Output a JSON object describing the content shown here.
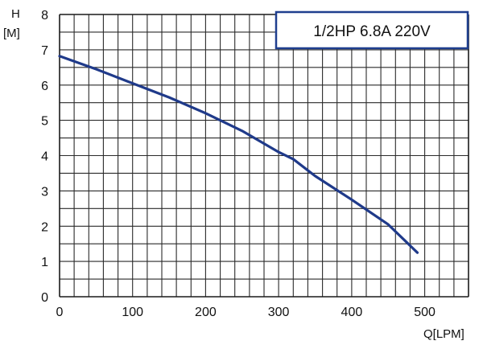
{
  "chart_data": {
    "type": "line",
    "title": "",
    "annotation": "1/2HP 6.8A  220V",
    "xlabel": "Q[LPM]",
    "ylabel_line1": "H",
    "ylabel_line2": "[M]",
    "xlim": [
      0,
      560
    ],
    "ylim": [
      0,
      8
    ],
    "xticks": [
      0,
      100,
      200,
      300,
      400,
      500
    ],
    "yticks": [
      0,
      1,
      2,
      3,
      4,
      5,
      6,
      7,
      8
    ],
    "x_grid_step": 20,
    "y_grid_step": 0.5,
    "grid": true,
    "series": [
      {
        "x": [
          0,
          50,
          100,
          150,
          200,
          250,
          300,
          320,
          350,
          400,
          450,
          490
        ],
        "y": [
          6.82,
          6.45,
          6.05,
          5.65,
          5.2,
          4.7,
          4.1,
          3.9,
          3.42,
          2.75,
          2.05,
          1.25
        ]
      }
    ],
    "colors": {
      "series": "#1f3a8a",
      "annotation_border": "#1f3f8f",
      "grid": "#2a2a2a",
      "text": "#111111"
    }
  }
}
